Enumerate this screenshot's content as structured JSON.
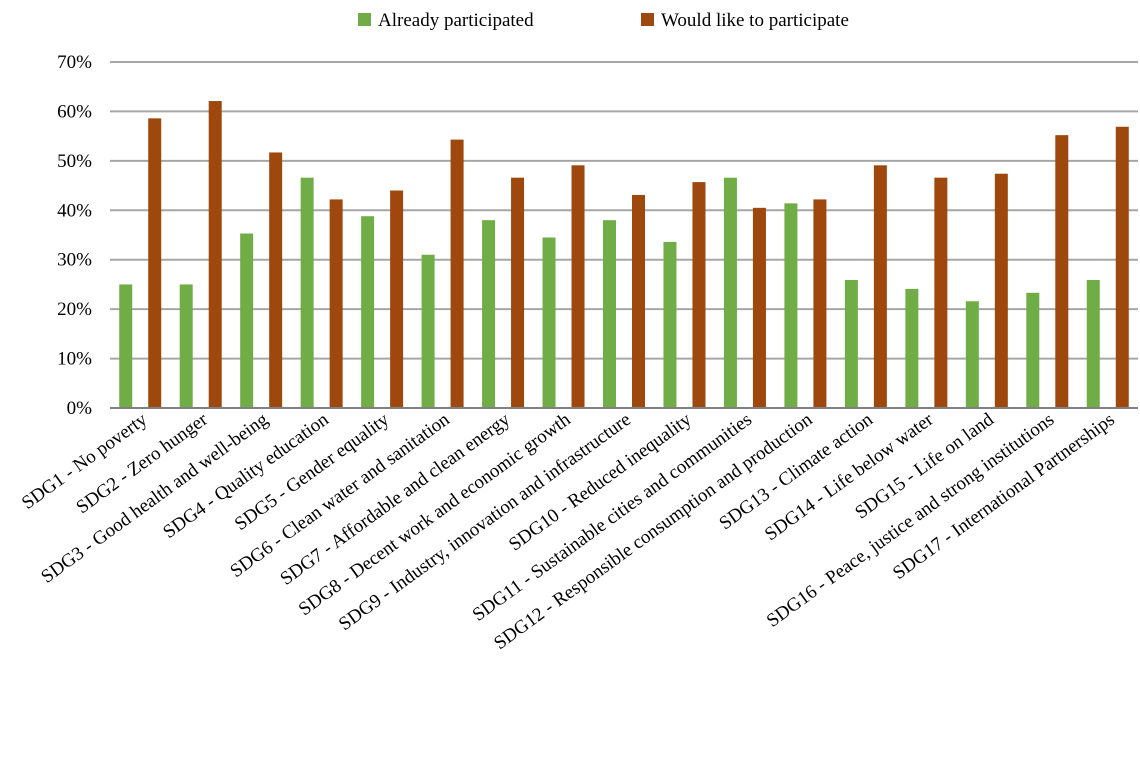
{
  "chart_data": {
    "type": "bar",
    "title": "",
    "xlabel": "",
    "ylabel": "",
    "ylim": [
      0,
      70
    ],
    "y_tick_step": 10,
    "y_tick_format": "percent",
    "grid": true,
    "legend_position": "top-center",
    "categories": [
      "SDG1 - No poverty",
      "SDG2 - Zero hunger",
      "SDG3 - Good health and well-being",
      "SDG4 - Quality education",
      "SDG5 - Gender equality",
      "SDG6 - Clean water and sanitation",
      "SDG7 - Affordable and clean energy",
      "SDG8 - Decent work and economic growth",
      "SDG9 - Industry, innovation and infrastructure",
      "SDG10 - Reduced inequality",
      "SDG11 - Sustainable cities and communities",
      "SDG12 - Responsible consumption and production",
      "SDG13 - Climate action",
      "SDG14 - Life below water",
      "SDG15 - Life on land",
      "SDG16 - Peace, justice and strong institutions",
      "SDG17 - International Partnerships"
    ],
    "series": [
      {
        "name": "Already participated",
        "color": "#70ad47",
        "values": [
          25,
          25,
          35.3,
          46.6,
          38.8,
          31,
          38,
          34.5,
          38,
          33.6,
          46.6,
          41.4,
          25.9,
          24.1,
          21.6,
          23.3,
          25.9
        ]
      },
      {
        "name": "Would like to participate",
        "color": "#9e480e",
        "values": [
          58.6,
          62.1,
          51.7,
          42.2,
          44,
          54.3,
          46.6,
          49.1,
          43.1,
          45.7,
          40.5,
          42.2,
          49.1,
          46.6,
          47.4,
          55.2,
          56.9
        ]
      }
    ]
  }
}
